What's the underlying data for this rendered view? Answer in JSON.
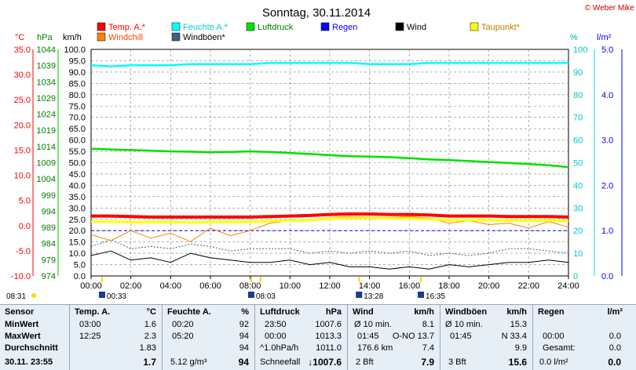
{
  "title": "Sonntag, 30.11.2014",
  "credit": "© Weber Mike",
  "colors": {
    "temp": "#ff0000",
    "windchill": "#ff8000",
    "humidity": "#00ffff",
    "pressure": "#00e000",
    "rain": "#0000ff",
    "wind": "#000000",
    "gust": "#406080",
    "dewpoint": "#ffff00",
    "grid": "#808080"
  },
  "legend": [
    {
      "label": "Temp. A.*",
      "color": "#ff0000",
      "text_color": "#ff0000"
    },
    {
      "label": "Feuchte A.*",
      "color": "#00ffff",
      "text_color": "#00d0d0"
    },
    {
      "label": "Luftdruck",
      "color": "#00e000",
      "text_color": "#008000"
    },
    {
      "label": "Regen",
      "color": "#0000ff",
      "text_color": "#0000ff"
    },
    {
      "label": "Wind",
      "color": "#000000",
      "text_color": "#000000"
    },
    {
      "label": "Taupunkt*",
      "color": "#ffff00",
      "text_color": "#c08000"
    },
    {
      "label": "Windchill",
      "color": "#ff8000",
      "text_color": "#ff4000"
    },
    {
      "label": "Windböen*",
      "color": "#406080",
      "text_color": "#000000"
    }
  ],
  "axis_units": {
    "temp": "°C",
    "pressure": "hPa",
    "wind": "km/h",
    "humidity": "%",
    "rain": "l/m²"
  },
  "chart_data": {
    "type": "line",
    "x_ticks": [
      "00:00",
      "02:00",
      "04:00",
      "06:00",
      "08:00",
      "10:00",
      "12:00",
      "14:00",
      "16:00",
      "18:00",
      "20:00",
      "22:00",
      "24:00"
    ],
    "temp_ticks": [
      "35.0",
      "30.0",
      "25.0",
      "20.0",
      "15.0",
      "10.0",
      "5.0",
      "0.0",
      "-5.0",
      "-10.0"
    ],
    "pressure_ticks": [
      "1044",
      "1039",
      "1034",
      "1029",
      "1024",
      "1019",
      "1014",
      "1009",
      "1004",
      "999",
      "994",
      "989",
      "984",
      "979",
      "974"
    ],
    "wind_ticks": [
      "100.0",
      "95.0",
      "90.0",
      "85.0",
      "80.0",
      "75.0",
      "70.0",
      "65.0",
      "60.0",
      "55.0",
      "50.0",
      "45.0",
      "40.0",
      "35.0",
      "30.0",
      "25.0",
      "20.0",
      "15.0",
      "10.0",
      "5.0",
      "0.0"
    ],
    "humidity_ticks": [
      "100",
      "90",
      "80",
      "70",
      "60",
      "50",
      "40",
      "30",
      "20",
      "10",
      "0"
    ],
    "rain_ticks": [
      "5.0",
      "4.0",
      "3.0",
      "2.0",
      "1.0",
      "0.0"
    ],
    "temp_range": [
      -10,
      35
    ],
    "pressure_range": [
      974,
      1044
    ],
    "wind_range": [
      0,
      100
    ],
    "humidity_range": [
      0,
      100
    ],
    "rain_range": [
      0,
      5
    ],
    "hours": [
      0,
      1,
      2,
      3,
      4,
      5,
      6,
      7,
      8,
      9,
      10,
      11,
      12,
      13,
      14,
      15,
      16,
      17,
      18,
      19,
      20,
      21,
      22,
      23,
      24
    ],
    "series": [
      {
        "name": "Temp. A.*",
        "axis": "temp",
        "values": [
          1.9,
          1.9,
          1.8,
          1.7,
          1.7,
          1.7,
          1.7,
          1.7,
          1.7,
          1.8,
          1.9,
          2.0,
          2.2,
          2.3,
          2.3,
          2.2,
          2.2,
          2.1,
          1.9,
          1.9,
          1.9,
          1.8,
          1.8,
          1.8,
          1.7
        ]
      },
      {
        "name": "Feuchte A.*",
        "axis": "humidity",
        "values": [
          93,
          92.5,
          93,
          93,
          93,
          93.5,
          93.5,
          93.5,
          93.5,
          94,
          94,
          94,
          94,
          94,
          93.5,
          93.5,
          93.5,
          94,
          94,
          94,
          94,
          94,
          94,
          94,
          94
        ]
      },
      {
        "name": "Luftdruck",
        "axis": "pressure",
        "values": [
          1013.3,
          1013.1,
          1012.9,
          1012.7,
          1012.5,
          1012.4,
          1012.2,
          1012.3,
          1012.5,
          1012.3,
          1012.0,
          1011.7,
          1011.3,
          1011.0,
          1010.9,
          1010.7,
          1010.4,
          1010.0,
          1009.8,
          1009.5,
          1009.2,
          1008.9,
          1008.6,
          1008.2,
          1007.6
        ]
      },
      {
        "name": "Taupunkt*",
        "axis": "temp",
        "values": [
          0.8,
          0.8,
          0.7,
          0.7,
          0.7,
          0.6,
          0.7,
          0.7,
          0.7,
          0.9,
          1.0,
          1.1,
          1.4,
          1.5,
          1.5,
          1.4,
          1.4,
          1.3,
          1.1,
          1.1,
          1.1,
          1.0,
          1.0,
          1.0,
          0.9
        ]
      },
      {
        "name": "Windchill",
        "axis": "temp",
        "values": [
          -1.8,
          -3.0,
          -1.0,
          -2.5,
          -1.5,
          -3.2,
          -0.5,
          -2.0,
          -1.0,
          0.5,
          1.0,
          1.2,
          1.6,
          1.8,
          1.7,
          1.6,
          1.8,
          1.5,
          0.5,
          1.0,
          0.2,
          0.5,
          -0.5,
          0.8,
          -0.3
        ]
      },
      {
        "name": "Windböen*",
        "axis": "wind",
        "values": [
          13,
          16,
          12,
          13,
          12,
          14,
          13,
          11,
          12,
          12,
          12,
          10,
          11,
          10,
          11,
          10,
          11,
          9,
          10,
          9,
          10,
          12,
          12,
          11,
          10
        ]
      },
      {
        "name": "Wind",
        "axis": "wind",
        "values": [
          9,
          11,
          7,
          8,
          6,
          10,
          8,
          7,
          6,
          6,
          7,
          5,
          6,
          4,
          4,
          3,
          4,
          3,
          5,
          4,
          5,
          6,
          6,
          7,
          6
        ]
      },
      {
        "name": "Regen",
        "axis": "rain",
        "values": [
          1.0,
          1.0,
          1.0,
          1.0,
          1.0,
          1.0,
          1.0,
          1.0,
          1.0,
          1.0,
          1.0,
          1.0,
          1.0,
          1.0,
          1.0,
          1.0,
          1.0,
          1.0,
          1.0,
          1.0,
          1.0,
          1.0,
          1.0,
          1.0,
          1.0
        ]
      }
    ],
    "event_times": [
      {
        "label": "08:31",
        "hour": 8.52
      },
      {
        "label": "00:33",
        "hour": 0.55
      },
      {
        "label": "08:03",
        "hour": 8.05
      },
      {
        "label": "13:28",
        "hour": 13.47
      },
      {
        "label": "16:35",
        "hour": 16.58
      }
    ]
  },
  "table": {
    "columns": [
      {
        "header": "Sensor",
        "unit": ""
      },
      {
        "header": "Temp. A.",
        "unit": "°C"
      },
      {
        "header": "Feuchte A.",
        "unit": "%"
      },
      {
        "header": "Luftdruck",
        "unit": "hPa"
      },
      {
        "header": "Wind",
        "unit": "km/h"
      },
      {
        "header": "Windböen",
        "unit": "km/h"
      },
      {
        "header": "Regen",
        "unit": "l/m²"
      }
    ],
    "row_labels": [
      "MinWert",
      "MaxWert",
      "Durchschnitt",
      "30.11. 23:55"
    ],
    "temp": [
      [
        "03:00",
        "1.6"
      ],
      [
        "12:25",
        "2.3"
      ],
      [
        "",
        "1.83"
      ],
      [
        "",
        "1.7"
      ]
    ],
    "humidity": [
      [
        "00:20",
        "92"
      ],
      [
        "05:20",
        "94"
      ],
      [
        "",
        "94"
      ],
      [
        "5.12 g/m³",
        "94"
      ]
    ],
    "pressure": [
      [
        "23:50",
        "1007.6"
      ],
      [
        "00:00",
        "1013.3"
      ],
      [
        "^1.0hPa/h",
        "1011.0"
      ],
      [
        "Schneefall",
        "↓1007.6"
      ]
    ],
    "wind": [
      [
        "Ø 10 min.",
        "8.1"
      ],
      [
        "01:45",
        "O-NO 13.7"
      ],
      [
        "176.6 km",
        "7.4"
      ],
      [
        "2 Bft",
        "7.9"
      ]
    ],
    "gust": [
      [
        "Ø 10 min.",
        "15.3"
      ],
      [
        "01:45",
        "N 33.4"
      ],
      [
        "",
        "9.9"
      ],
      [
        "3 Bft",
        "15.6"
      ]
    ],
    "rain": [
      [
        "",
        ""
      ],
      [
        "00:00",
        "0.0"
      ],
      [
        "Gesamt:",
        "0.0"
      ],
      [
        "0.0 l/m²",
        "0.0"
      ]
    ]
  }
}
